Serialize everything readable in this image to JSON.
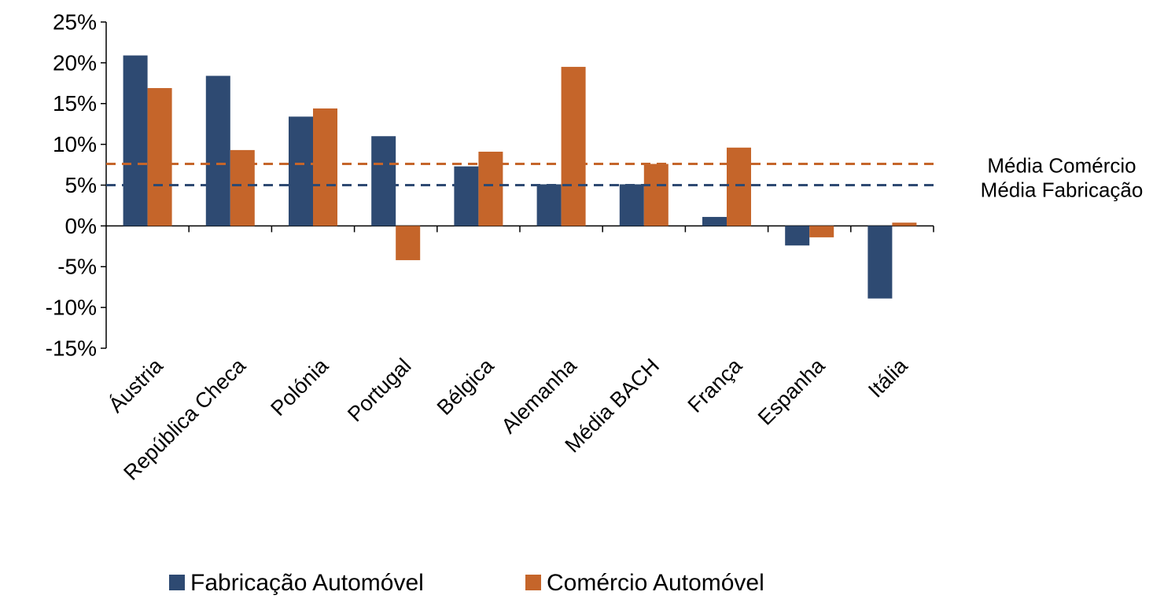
{
  "chart_data": {
    "type": "bar",
    "categories": [
      "Áustria",
      "República Checa",
      "Polónia",
      "Portugal",
      "Bélgica",
      "Alemanha",
      "Média BACH",
      "França",
      "Espanha",
      "Itália"
    ],
    "series": [
      {
        "name": "Fabricação Automóvel",
        "color": "#2e4a72",
        "values": [
          20.9,
          18.4,
          13.4,
          11.0,
          7.3,
          5.1,
          5.1,
          1.1,
          -2.4,
          -8.9
        ]
      },
      {
        "name": "Comércio Automóvel",
        "color": "#c5652a",
        "values": [
          16.9,
          9.3,
          14.4,
          -4.2,
          9.1,
          19.5,
          7.6,
          9.6,
          -1.4,
          0.4
        ]
      }
    ],
    "reference_lines": [
      {
        "name": "Média Comércio",
        "value": 7.6,
        "color": "#c5652a"
      },
      {
        "name": "Média Fabricação",
        "value": 5.0,
        "color": "#2e4a72"
      }
    ],
    "ylim": [
      -15,
      25
    ],
    "yticks": [
      {
        "value": -15,
        "label": "-15%"
      },
      {
        "value": -10,
        "label": "-10%"
      },
      {
        "value": -5,
        "label": "-5%"
      },
      {
        "value": 0,
        "label": "0%"
      },
      {
        "value": 5,
        "label": "5%"
      },
      {
        "value": 10,
        "label": "10%"
      },
      {
        "value": 15,
        "label": "15%"
      },
      {
        "value": 20,
        "label": "20%"
      },
      {
        "value": 25,
        "label": "25%"
      }
    ],
    "legend": "bottom"
  }
}
